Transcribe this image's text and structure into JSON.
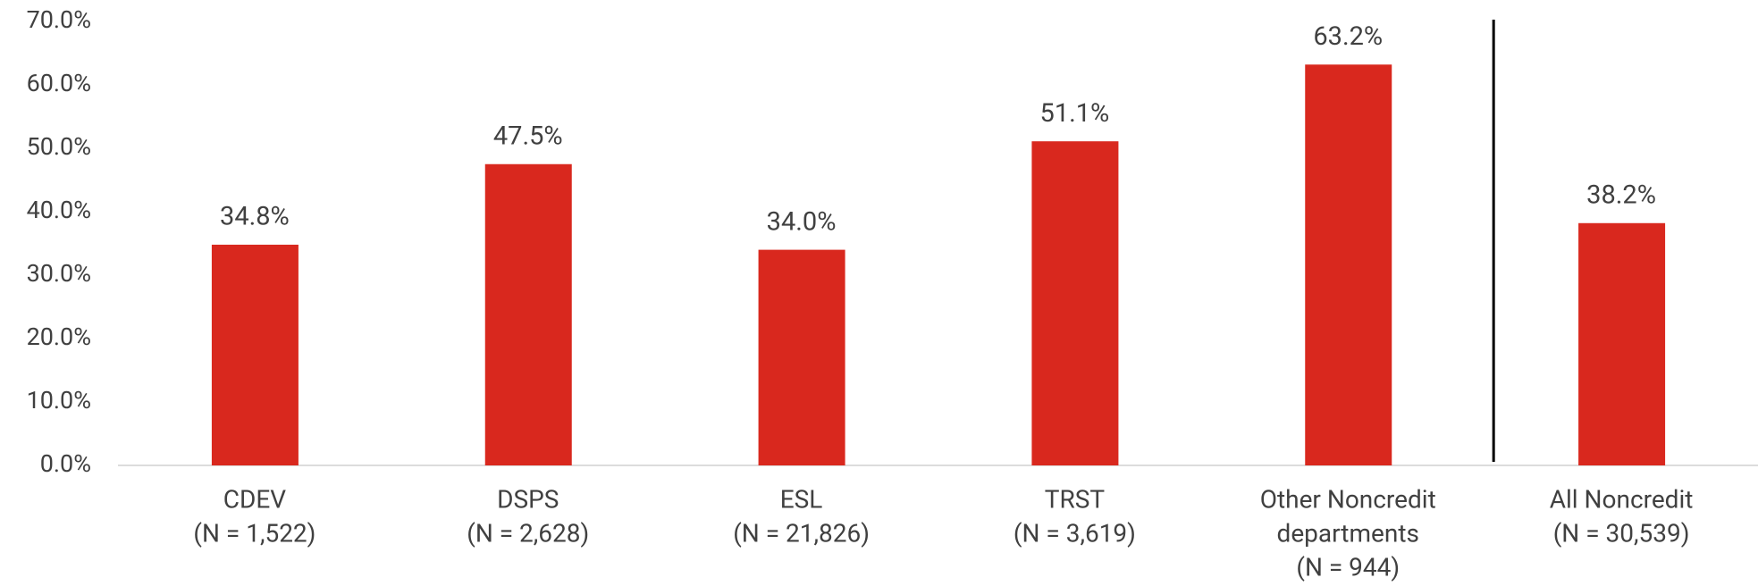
{
  "chart_data": {
    "type": "bar",
    "categories": [
      [
        "CDEV",
        "(N = 1,522)"
      ],
      [
        "DSPS",
        "(N = 2,628)"
      ],
      [
        "ESL",
        "(N = 21,826)"
      ],
      [
        "TRST",
        "(N = 3,619)"
      ],
      [
        "Other Noncredit",
        "departments",
        "(N = 944)"
      ],
      [
        "All Noncredit",
        "(N = 30,539)"
      ]
    ],
    "values": [
      34.8,
      47.5,
      34.0,
      51.1,
      63.2,
      38.2
    ],
    "value_labels": [
      "34.8%",
      "47.5%",
      "34.0%",
      "51.1%",
      "63.2%",
      "38.2%"
    ],
    "color": "#d9281e",
    "ylim": [
      0,
      70
    ],
    "yticks": [
      {
        "value": 0,
        "label": "0.0%"
      },
      {
        "value": 10,
        "label": "10.0%"
      },
      {
        "value": 20,
        "label": "20.0%"
      },
      {
        "value": 30,
        "label": "30.0%"
      },
      {
        "value": 40,
        "label": "40.0%"
      },
      {
        "value": 50,
        "label": "50.0%"
      },
      {
        "value": 60,
        "label": "60.0%"
      },
      {
        "value": 70,
        "label": "70.0%"
      }
    ],
    "grid": false
  }
}
